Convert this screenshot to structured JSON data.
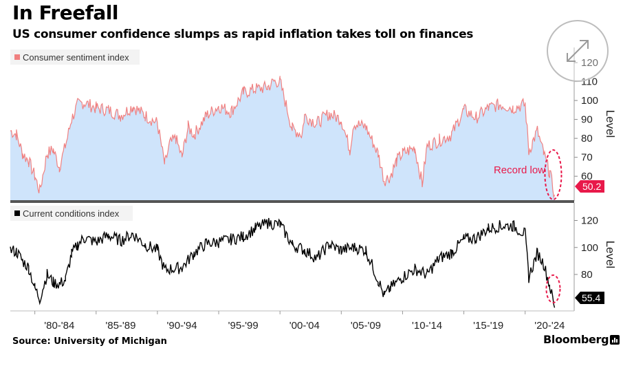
{
  "header": {
    "title": "In Freefall",
    "subtitle": "US consumer confidence slumps as rapid inflation takes toll on finances"
  },
  "footer": {
    "source": "Source: University of Michigan",
    "brand": "Bloomberg"
  },
  "colors": {
    "sentiment_line": "#f08080",
    "sentiment_fill": "#cfe4fb",
    "conditions_line": "#000000",
    "highlight": "#e8194a",
    "divider": "#555555"
  },
  "chart_data": [
    {
      "type": "area",
      "series": [
        {
          "name": "Consumer sentiment index",
          "x": [
            1978.0,
            1978.5,
            1979.0,
            1979.5,
            1980.0,
            1980.4,
            1981.0,
            1981.5,
            1982.0,
            1982.5,
            1983.0,
            1983.5,
            1984.0,
            1985.0,
            1986.0,
            1987.0,
            1988.0,
            1989.0,
            1990.0,
            1990.6,
            1991.0,
            1991.5,
            1992.0,
            1992.5,
            1993.0,
            1994.0,
            1995.0,
            1996.0,
            1997.0,
            1998.0,
            1999.0,
            1999.5,
            2000.0,
            2001.0,
            2001.8,
            2002.0,
            2003.0,
            2004.0,
            2005.0,
            2005.7,
            2006.0,
            2007.0,
            2008.0,
            2008.5,
            2009.0,
            2009.5,
            2010.0,
            2011.0,
            2011.6,
            2012.0,
            2013.0,
            2014.0,
            2015.0,
            2016.0,
            2017.0,
            2018.0,
            2019.0,
            2020.0,
            2020.3,
            2020.6,
            2021.0,
            2021.5,
            2022.0,
            2022.4
          ],
          "y": [
            84,
            82,
            72,
            68,
            60,
            52,
            72,
            74,
            65,
            76,
            90,
            98,
            99,
            96,
            95,
            92,
            97,
            92,
            88,
            66,
            77,
            80,
            70,
            86,
            82,
            92,
            97,
            94,
            104,
            106,
            107,
            110,
            110,
            85,
            82,
            92,
            88,
            93,
            90,
            74,
            88,
            86,
            72,
            58,
            60,
            68,
            72,
            75,
            56,
            76,
            79,
            82,
            95,
            91,
            96,
            98,
            96,
            98,
            73,
            78,
            84,
            72,
            62,
            50.2
          ],
          "label_value": "50.2",
          "annotation": "Record low",
          "y_ticks": [
            60,
            70,
            80,
            90,
            100,
            110,
            120
          ]
        }
      ],
      "xlim": [
        1978,
        2024
      ],
      "ylim": [
        47,
        128
      ],
      "ylabel": "Level",
      "legend": "top-left",
      "grid": false
    },
    {
      "type": "line",
      "series": [
        {
          "name": "Current conditions index",
          "x": [
            1978.0,
            1978.5,
            1979.0,
            1979.5,
            1980.0,
            1980.4,
            1981.0,
            1981.5,
            1982.0,
            1982.5,
            1983.0,
            1983.5,
            1984.0,
            1985.0,
            1986.0,
            1987.0,
            1988.0,
            1989.0,
            1990.0,
            1990.6,
            1991.0,
            1992.0,
            1993.0,
            1994.0,
            1995.0,
            1996.0,
            1997.0,
            1998.0,
            1999.0,
            2000.0,
            2001.0,
            2002.0,
            2003.0,
            2004.0,
            2005.0,
            2006.0,
            2007.0,
            2008.0,
            2008.5,
            2009.0,
            2010.0,
            2011.0,
            2012.0,
            2013.0,
            2014.0,
            2015.0,
            2016.0,
            2017.0,
            2018.0,
            2019.0,
            2020.0,
            2020.3,
            2021.0,
            2021.5,
            2022.0,
            2022.4
          ],
          "y": [
            98,
            97,
            90,
            85,
            70,
            62,
            80,
            74,
            73,
            76,
            95,
            102,
            107,
            104,
            109,
            105,
            110,
            102,
            98,
            83,
            84,
            85,
            96,
            103,
            104,
            106,
            108,
            114,
            118,
            117,
            102,
            98,
            92,
            102,
            98,
            100,
            98,
            76,
            64,
            70,
            78,
            84,
            80,
            92,
            96,
            106,
            107,
            114,
            116,
            116,
            110,
            78,
            96,
            88,
            72,
            55.4
          ],
          "label_value": "55.4",
          "y_ticks": [
            80,
            100,
            120
          ]
        }
      ],
      "x_ticks": [
        "'80-'84",
        "'85-'89",
        "'90-'94",
        "'95-'99",
        "'00-'04",
        "'05-'09",
        "'10-'14",
        "'15-'19",
        "'20-'24"
      ],
      "x_tick_centers": [
        1982,
        1987,
        1992,
        1997,
        2002,
        2007,
        2012,
        2017,
        2022
      ],
      "xlim": [
        1978,
        2024
      ],
      "ylim": [
        53,
        133
      ],
      "ylabel": "Level",
      "legend": "top-left",
      "grid": false
    }
  ]
}
